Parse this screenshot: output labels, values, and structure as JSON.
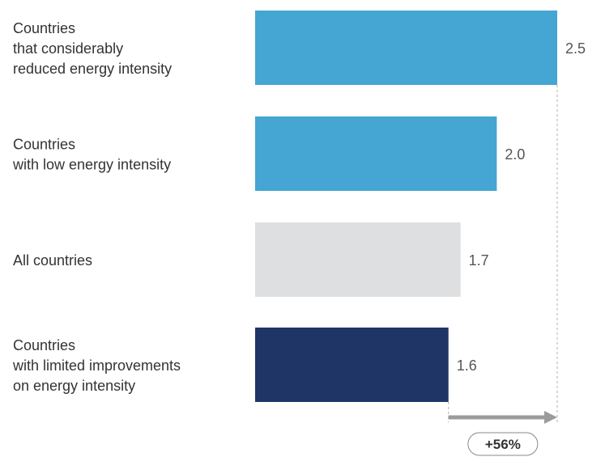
{
  "chart_data": {
    "type": "bar",
    "orientation": "horizontal",
    "categories": [
      [
        "Countries",
        "that considerably",
        "reduced energy intensity"
      ],
      [
        "Countries",
        "with low energy intensity"
      ],
      [
        "All countries"
      ],
      [
        "Countries",
        "with limited improvements",
        "on energy intensity"
      ]
    ],
    "values": [
      2.5,
      2.0,
      1.7,
      1.6
    ],
    "value_labels": [
      "2.5",
      "2.0",
      "1.7",
      "1.6"
    ],
    "xlim": [
      0,
      2.5
    ],
    "bar_colors": [
      "#45A5D3",
      "#45A5D3",
      "#DEDFE0",
      "#1F3566"
    ],
    "title": "",
    "xlabel": "",
    "ylabel": "",
    "grid": false,
    "legend": "none",
    "annotation": {
      "text": "+56%",
      "from_category_index": 3,
      "to_category_index": 0
    }
  },
  "colors": {
    "label_text": "#333333",
    "value_text": "#555555",
    "arrow": "#9B9B9B",
    "reference_line": "#B0B0B0"
  }
}
